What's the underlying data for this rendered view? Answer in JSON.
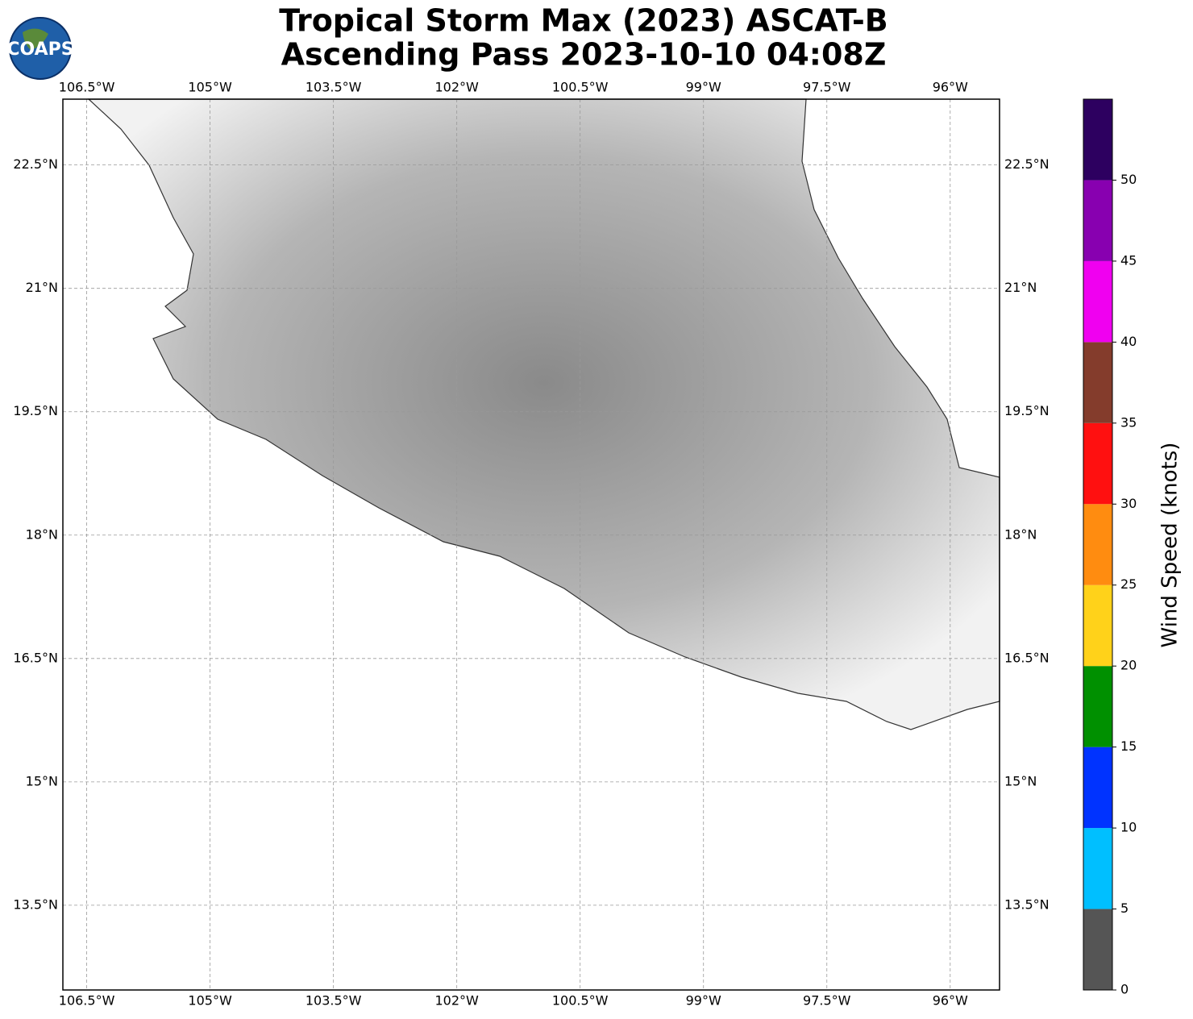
{
  "logo": "COAPS",
  "chart_data": {
    "type": "map",
    "title": "Tropical Storm Max (2023) ASCAT-B",
    "subtitle": "Ascending Pass 2023-10-10 04:08Z",
    "xlim": [
      -106.79,
      -95.4
    ],
    "ylim": [
      12.47,
      23.3
    ],
    "xticks": [
      {
        "value": -106.5,
        "label": "106.5°W"
      },
      {
        "value": -105,
        "label": "105°W"
      },
      {
        "value": -103.5,
        "label": "103.5°W"
      },
      {
        "value": -102,
        "label": "102°W"
      },
      {
        "value": -100.5,
        "label": "100.5°W"
      },
      {
        "value": -99,
        "label": "99°W"
      },
      {
        "value": -97.5,
        "label": "97.5°W"
      },
      {
        "value": -96,
        "label": "96°W"
      }
    ],
    "yticks": [
      {
        "value": 22.5,
        "label": "22.5°N"
      },
      {
        "value": 21,
        "label": "21°N"
      },
      {
        "value": 19.5,
        "label": "19.5°N"
      },
      {
        "value": 18,
        "label": "18°N"
      },
      {
        "value": 16.5,
        "label": "16.5°N"
      },
      {
        "value": 15,
        "label": "15°N"
      },
      {
        "value": 13.5,
        "label": "13.5°N"
      }
    ],
    "grid": true,
    "colorbar": {
      "label": "Wind Speed (knots)",
      "lim": [
        0,
        55
      ],
      "bounds": [
        0,
        5,
        10,
        15,
        20,
        25,
        30,
        35,
        40,
        45,
        50,
        55
      ],
      "colors": [
        "#555555",
        "#00bfff",
        "#0033ff",
        "#009000",
        "#ffd21a",
        "#ff8c10",
        "#ff1010",
        "#843c2c",
        "#f000f0",
        "#8800b0",
        "#2d0060"
      ],
      "ticks": [
        0,
        5,
        10,
        15,
        20,
        25,
        30,
        35,
        40,
        45,
        50
      ]
    }
  }
}
